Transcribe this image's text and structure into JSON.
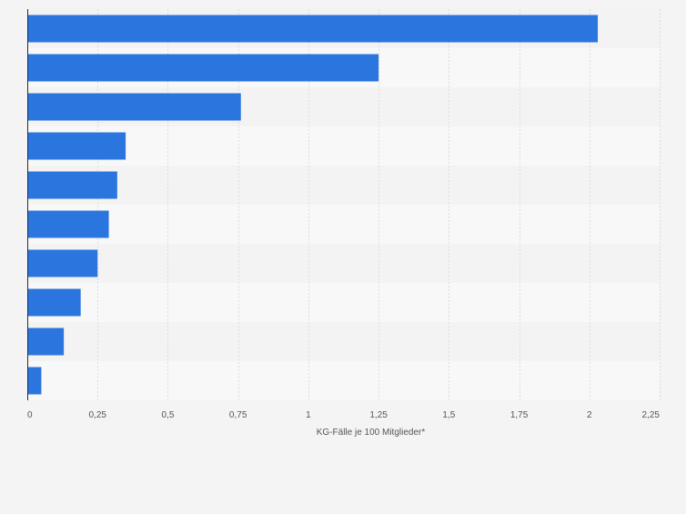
{
  "chart_data": {
    "type": "bar",
    "orientation": "horizontal",
    "values": [
      2.03,
      1.25,
      0.76,
      0.35,
      0.32,
      0.29,
      0.25,
      0.19,
      0.13,
      0.05
    ],
    "xlabel": "KG-Fälle je 100 Mitglieder*",
    "xlim": [
      0,
      2.25
    ],
    "xticks": [
      0,
      0.25,
      0.5,
      0.75,
      1,
      1.25,
      1.5,
      1.75,
      2,
      2.25
    ],
    "xtick_labels": [
      "0",
      "0,25",
      "0,5",
      "0,75",
      "1",
      "1,25",
      "1,5",
      "1,75",
      "2",
      "2,25"
    ],
    "grid": "vertical dashed",
    "legend": "none",
    "bar_color": "#2b76de",
    "band_colors": [
      "#f3f3f3",
      "#f8f8f8"
    ],
    "background": "#f4f4f4"
  }
}
